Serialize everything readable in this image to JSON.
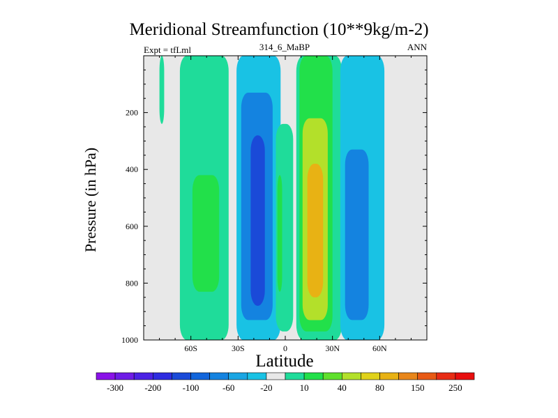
{
  "title": "Meridional Streamfunction (10**9kg/m-2)",
  "left_annotation": "Expt = tfLml",
  "center_annotation": "314_6_MaBP",
  "right_annotation": "ANN",
  "colors": {
    "background_field": "#e8e8e8",
    "axis": "#000000"
  },
  "chart_data": {
    "type": "filled-contour",
    "title": "Meridional Streamfunction (10**9kg/m-2)",
    "xlabel": "Latitude",
    "ylabel": "Pressure (in hPa)",
    "xlim": [
      -90,
      90
    ],
    "ylim": [
      0,
      1000
    ],
    "y_inverted": true,
    "x_ticks": [
      {
        "value": -60,
        "label": "60S"
      },
      {
        "value": -30,
        "label": "30S"
      },
      {
        "value": 0,
        "label": "0"
      },
      {
        "value": 30,
        "label": "30N"
      },
      {
        "value": 60,
        "label": "60N"
      }
    ],
    "y_ticks": [
      {
        "value": 200,
        "label": "200"
      },
      {
        "value": 400,
        "label": "400"
      },
      {
        "value": 600,
        "label": "600"
      },
      {
        "value": 800,
        "label": "800"
      },
      {
        "value": 1000,
        "label": "1000"
      }
    ],
    "colorbar": {
      "colors": [
        "#8a12e8",
        "#6e1ce6",
        "#4b22e4",
        "#2e2ce0",
        "#1a4ad8",
        "#1266dc",
        "#1483e0",
        "#1aa6e3",
        "#19c2e4",
        "#e8e8e8",
        "#1fdc9a",
        "#22e04a",
        "#5fe02c",
        "#b3e02a",
        "#e0d21a",
        "#e8b214",
        "#e8861a",
        "#e85a14",
        "#e82c14",
        "#e80e0e"
      ],
      "labels": [
        "-300",
        "-200",
        "-100",
        "-60",
        "-20",
        "10",
        "40",
        "80",
        "150",
        "250"
      ]
    },
    "regions": [
      {
        "name": "SH polar thin band",
        "level": 10,
        "lat_south": -80,
        "lat_north": -77,
        "p_top": 0,
        "p_bottom": 240
      },
      {
        "name": "SH high-latitude cell",
        "level": 10,
        "lat_south": -67,
        "lat_north": -36,
        "p_top": 0,
        "p_bottom": 1000
      },
      {
        "name": "SH high-latitude core",
        "level": 40,
        "lat_south": -59,
        "lat_north": -42,
        "p_top": 420,
        "p_bottom": 830
      },
      {
        "name": "SH Hadley cell",
        "level": -20,
        "lat_south": -31,
        "lat_north": -3,
        "p_top": 0,
        "p_bottom": 1000
      },
      {
        "name": "SH Hadley inner",
        "level": -60,
        "lat_south": -28,
        "lat_north": -8,
        "p_top": 130,
        "p_bottom": 930
      },
      {
        "name": "SH Hadley core",
        "level": -100,
        "lat_south": -22,
        "lat_north": -13,
        "p_top": 280,
        "p_bottom": 880
      },
      {
        "name": "Equatorial thin cell",
        "level": 10,
        "lat_south": -6,
        "lat_north": 5,
        "p_top": 240,
        "p_bottom": 970
      },
      {
        "name": "Equatorial thin core",
        "level": 40,
        "lat_south": -5,
        "lat_north": -2,
        "p_top": 420,
        "p_bottom": 830
      },
      {
        "name": "NH Hadley cell",
        "level": 10,
        "lat_south": 7,
        "lat_north": 36,
        "p_top": 0,
        "p_bottom": 1000
      },
      {
        "name": "NH Hadley inner",
        "level": 40,
        "lat_south": 9,
        "lat_north": 30,
        "p_top": 0,
        "p_bottom": 970
      },
      {
        "name": "NH Hadley mid",
        "level": 80,
        "lat_south": 11,
        "lat_north": 27,
        "p_top": 220,
        "p_bottom": 930
      },
      {
        "name": "NH Hadley core",
        "level": 150,
        "lat_south": 14,
        "lat_north": 24,
        "p_top": 380,
        "p_bottom": 850
      },
      {
        "name": "NH Ferrel cell",
        "level": -20,
        "lat_south": 35,
        "lat_north": 63,
        "p_top": 0,
        "p_bottom": 1000
      },
      {
        "name": "NH Ferrel core",
        "level": -60,
        "lat_south": 38,
        "lat_north": 53,
        "p_top": 330,
        "p_bottom": 930
      }
    ]
  }
}
